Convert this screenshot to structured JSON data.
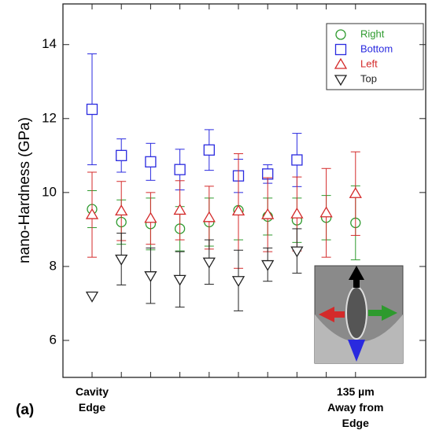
{
  "chart_data": {
    "type": "scatter",
    "panel_label": "(a)",
    "y_label": "nano-Hardness (GPa)",
    "categories": [
      "Cavity Edge",
      null,
      null,
      null,
      null,
      null,
      null,
      null,
      null,
      "135 µm Away from Edge"
    ],
    "ylim": [
      5,
      15.1
    ],
    "yticks": [
      6,
      8,
      10,
      12,
      14
    ],
    "series": [
      {
        "name": "Right",
        "color": "#2e9a2e",
        "marker": "circle",
        "values": [
          9.55,
          9.2,
          9.15,
          9.02,
          9.2,
          9.52,
          9.35,
          9.25,
          9.32,
          9.18
        ],
        "errors": [
          0.5,
          0.6,
          0.7,
          0.6,
          0.65,
          0.8,
          0.5,
          0.6,
          0.6,
          1.0
        ]
      },
      {
        "name": "Bottom",
        "color": "#2a2adf",
        "marker": "square",
        "values": [
          12.25,
          11.0,
          10.83,
          10.62,
          11.15,
          10.45,
          10.5,
          10.88,
          null,
          null
        ],
        "errors": [
          1.5,
          0.45,
          0.5,
          0.55,
          0.55,
          0.45,
          0.25,
          0.72,
          null,
          null
        ]
      },
      {
        "name": "Left",
        "color": "#d42a2a",
        "marker": "triangle-up",
        "values": [
          9.4,
          9.5,
          9.3,
          9.52,
          9.32,
          9.5,
          9.4,
          9.42,
          9.45,
          9.97
        ],
        "errors": [
          1.15,
          0.8,
          0.7,
          0.8,
          0.85,
          1.55,
          1.0,
          1.0,
          1.2,
          1.13
        ]
      },
      {
        "name": "Top",
        "color": "#222222",
        "marker": "triangle-down",
        "values": [
          7.2,
          8.2,
          7.75,
          7.65,
          8.12,
          7.62,
          8.05,
          8.42,
          null,
          null
        ],
        "errors": [
          null,
          0.7,
          0.75,
          0.75,
          0.6,
          0.82,
          0.45,
          0.6,
          null,
          null
        ]
      }
    ]
  }
}
